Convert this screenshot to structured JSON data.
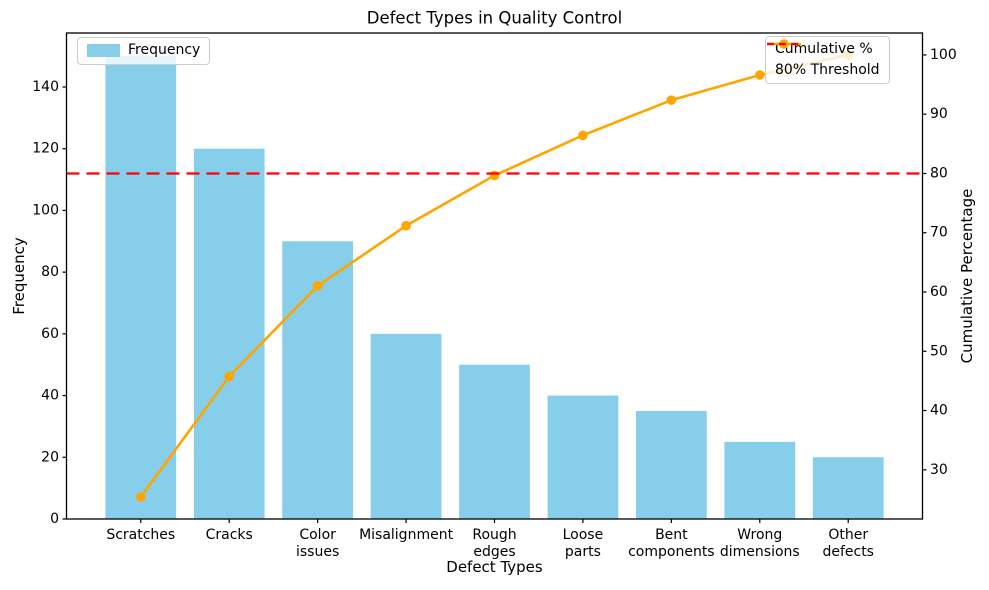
{
  "chart_data": {
    "type": "bar+line (pareto)",
    "title": "Defect Types in Quality Control",
    "xlabel": "Defect Types",
    "categories": [
      "Scratches",
      "Cracks",
      "Color\nissues",
      "Misalignment",
      "Rough\nedges",
      "Loose\nparts",
      "Bent\ncomponents",
      "Wrong\ndimensions",
      "Other\ndefects"
    ],
    "axes": {
      "left": {
        "label": "Frequency",
        "ticks": [
          0,
          20,
          40,
          60,
          80,
          100,
          120,
          140
        ],
        "lim": [
          0,
          157.5
        ]
      },
      "right": {
        "label": "Cumulative Percentage",
        "ticks": [
          30,
          40,
          50,
          60,
          70,
          80,
          90,
          100
        ],
        "lim": [
          21.7,
          103.7
        ]
      }
    },
    "series": [
      {
        "name": "Frequency",
        "type": "bar",
        "axis": "left",
        "color": "#87CEEB",
        "values": [
          150,
          120,
          90,
          60,
          50,
          40,
          35,
          25,
          20
        ]
      },
      {
        "name": "Cumulative %",
        "type": "line",
        "axis": "right",
        "color": "#FFA500",
        "marker": "circle",
        "values": [
          25.42,
          45.76,
          61.02,
          71.19,
          79.66,
          86.44,
          92.37,
          96.61,
          100.0
        ]
      }
    ],
    "threshold": {
      "name": "80% Threshold",
      "axis": "right",
      "value": 80,
      "color": "#FF0000",
      "style": "dashed"
    },
    "legends": [
      {
        "position": "upper-left",
        "entries": [
          {
            "label": "Frequency",
            "swatch": "bar",
            "color": "#87CEEB"
          }
        ]
      },
      {
        "position": "upper-right",
        "entries": [
          {
            "label": "Cumulative %",
            "swatch": "line-marker",
            "color": "#FFA500"
          },
          {
            "label": "80% Threshold",
            "swatch": "dashed-line",
            "color": "#FF0000"
          }
        ]
      }
    ],
    "grid": false,
    "background": "#ffffff"
  }
}
